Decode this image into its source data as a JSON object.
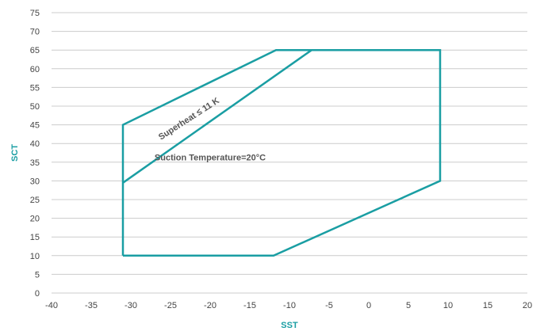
{
  "chart_data": {
    "type": "line",
    "title": "",
    "xlabel": "SST",
    "ylabel": "SCT",
    "xlim": [
      -40,
      20
    ],
    "ylim": [
      0,
      75
    ],
    "x_ticks": [
      -40,
      -35,
      -30,
      -25,
      -20,
      -15,
      -10,
      -5,
      0,
      5,
      10,
      15,
      20
    ],
    "y_ticks": [
      0,
      5,
      10,
      15,
      20,
      25,
      30,
      35,
      40,
      45,
      50,
      55,
      60,
      65,
      70,
      75
    ],
    "grid": "horizontal",
    "legend": "none",
    "colors": {
      "series": "#1a9ea3",
      "axis_title": "#1a9ea3",
      "grid": "#cccccc",
      "tick_text": "#444444",
      "annotation": "#555555"
    },
    "series": [
      {
        "points": [
          {
            "x": -31,
            "y": 10
          },
          {
            "x": -12,
            "y": 10
          },
          {
            "x": 9,
            "y": 30
          },
          {
            "x": 9,
            "y": 65
          },
          {
            "x": -11.7,
            "y": 65
          },
          {
            "x": -31,
            "y": 45
          },
          {
            "x": -31,
            "y": 10
          }
        ]
      },
      {
        "points": [
          {
            "x": -31,
            "y": 29.5
          },
          {
            "x": -7.2,
            "y": 65
          }
        ]
      }
    ],
    "annotations": [
      {
        "text": "Superheat ≤ 11 K",
        "x": -22.5,
        "y": 46,
        "angle": -33
      },
      {
        "text": "Suction Temperature=20°C",
        "x": -20,
        "y": 35.5,
        "angle": 0
      }
    ]
  }
}
